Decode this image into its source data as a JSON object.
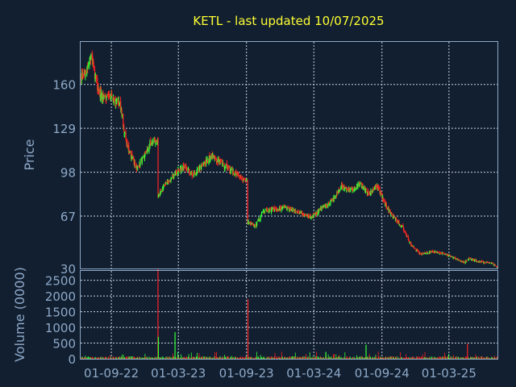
{
  "chart_data": {
    "type": "candlestick",
    "title": "KETL - last updated 10/07/2025",
    "colors": {
      "background": "#111f30",
      "up": "#33ff33",
      "down": "#ff2222",
      "text": "#8fa9c8",
      "title": "#ffff33",
      "grid": "#c9d3df"
    },
    "grid": true,
    "x_ticks": [
      "01-09-22",
      "01-03-23",
      "01-09-23",
      "01-03-24",
      "01-09-24",
      "01-03-25"
    ],
    "x_tick_dates": [
      "2022-09-01",
      "2023-03-01",
      "2023-09-01",
      "2024-03-01",
      "2024-09-01",
      "2025-03-01"
    ],
    "x_range": [
      "2022-06-10",
      "2025-07-10"
    ],
    "price_panel": {
      "ylabel": "Price",
      "ylim": [
        30,
        190
      ],
      "y_ticks": [
        30,
        67,
        98,
        129,
        160
      ],
      "y_tick_labels": [
        "30",
        "67",
        "98",
        "129",
        "160"
      ]
    },
    "volume_panel": {
      "ylabel": "Volume (0000)",
      "ylim": [
        0,
        2800
      ],
      "y_ticks": [
        0,
        500,
        1000,
        1500,
        2000,
        2500
      ],
      "y_tick_labels": [
        "0",
        "500",
        "1000",
        "1500",
        "2000",
        "2500"
      ],
      "spikes": [
        {
          "date": "2023-01-05",
          "value": 2850,
          "dir": "down"
        },
        {
          "date": "2023-01-06",
          "value": 700,
          "dir": "up"
        },
        {
          "date": "2023-09-05",
          "value": 1900,
          "dir": "down"
        },
        {
          "date": "2023-02-20",
          "value": 850,
          "dir": "up"
        },
        {
          "date": "2024-07-20",
          "value": 450,
          "dir": "up"
        },
        {
          "date": "2025-04-20",
          "value": 480,
          "dir": "down"
        }
      ]
    },
    "price_anchors": [
      [
        "2022-06-10",
        165
      ],
      [
        "2022-06-25",
        170
      ],
      [
        "2022-07-10",
        180
      ],
      [
        "2022-07-25",
        158
      ],
      [
        "2022-08-10",
        150
      ],
      [
        "2022-09-01",
        152
      ],
      [
        "2022-09-25",
        145
      ],
      [
        "2022-10-10",
        120
      ],
      [
        "2022-10-25",
        110
      ],
      [
        "2022-11-10",
        100
      ],
      [
        "2022-11-25",
        108
      ],
      [
        "2022-12-15",
        118
      ],
      [
        "2023-01-04",
        120
      ],
      [
        "2023-01-05",
        80
      ],
      [
        "2023-01-20",
        88
      ],
      [
        "2023-02-15",
        95
      ],
      [
        "2023-03-15",
        103
      ],
      [
        "2023-04-10",
        96
      ],
      [
        "2023-05-10",
        104
      ],
      [
        "2023-06-01",
        110
      ],
      [
        "2023-06-25",
        104
      ],
      [
        "2023-07-20",
        100
      ],
      [
        "2023-08-10",
        95
      ],
      [
        "2023-09-02",
        92
      ],
      [
        "2023-09-03",
        63
      ],
      [
        "2023-09-25",
        60
      ],
      [
        "2023-10-15",
        70
      ],
      [
        "2023-11-15",
        72
      ],
      [
        "2023-12-20",
        73
      ],
      [
        "2024-02-01",
        68
      ],
      [
        "2024-02-25",
        66
      ],
      [
        "2024-03-20",
        72
      ],
      [
        "2024-04-20",
        78
      ],
      [
        "2024-05-15",
        88
      ],
      [
        "2024-06-10",
        85
      ],
      [
        "2024-07-05",
        90
      ],
      [
        "2024-07-25",
        83
      ],
      [
        "2024-08-20",
        88
      ],
      [
        "2024-09-10",
        75
      ],
      [
        "2024-09-30",
        67
      ],
      [
        "2024-10-25",
        60
      ],
      [
        "2024-11-15",
        48
      ],
      [
        "2024-12-15",
        40
      ],
      [
        "2025-01-20",
        42
      ],
      [
        "2025-02-20",
        40
      ],
      [
        "2025-03-20",
        37
      ],
      [
        "2025-04-10",
        34
      ],
      [
        "2025-04-25",
        37
      ],
      [
        "2025-05-20",
        35
      ],
      [
        "2025-06-20",
        34
      ],
      [
        "2025-07-10",
        31
      ]
    ]
  }
}
